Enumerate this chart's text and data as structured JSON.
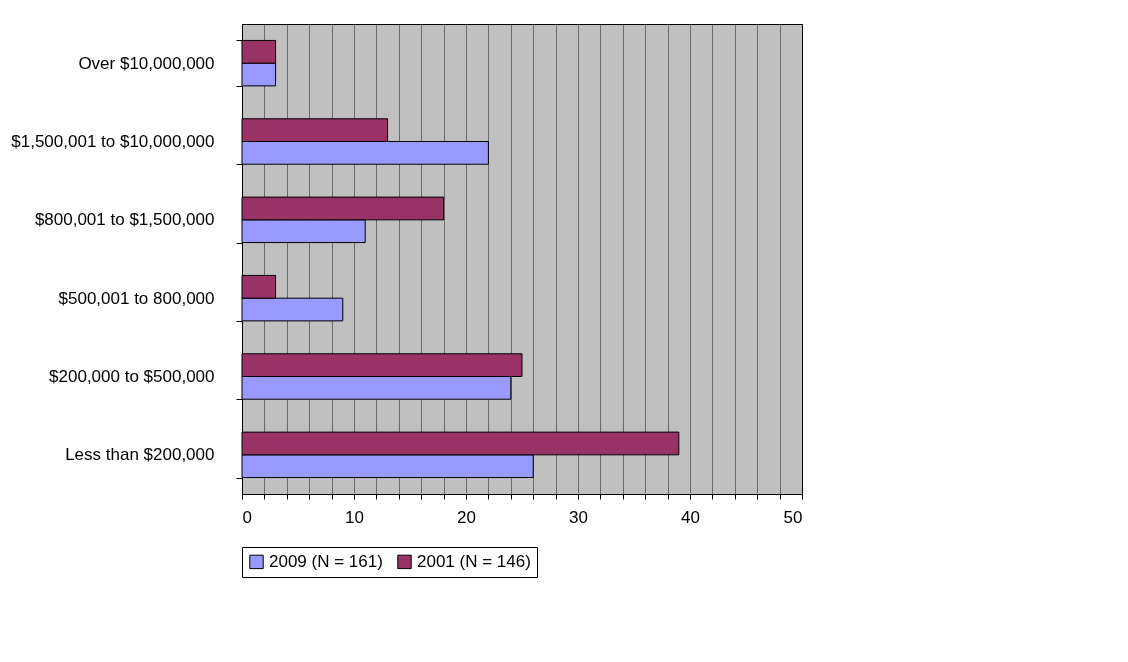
{
  "chart_data": {
    "type": "bar",
    "orientation": "horizontal",
    "categories": [
      "Over $10,000,000",
      "$1,500,001 to $10,000,000",
      "$800,001 to $1,500,000",
      "$500,001 to 800,000",
      "$200,000 to $500,000",
      "Less than $200,000"
    ],
    "series": [
      {
        "name": "2009 (N = 161)",
        "color": "#9999ff",
        "values": [
          3,
          22,
          11,
          9,
          24,
          26
        ]
      },
      {
        "name": "2001 (N = 146)",
        "color": "#993366",
        "values": [
          3,
          13,
          18,
          3,
          25,
          39
        ]
      }
    ],
    "xlim": [
      0,
      50
    ],
    "xticks": [
      0,
      {
        "value": 2,
        "label": null
      },
      {
        "value": 4,
        "label": null
      },
      {
        "value": 6,
        "label": null
      },
      {
        "value": 8,
        "label": null
      },
      10,
      {
        "value": 12,
        "label": null
      },
      {
        "value": 14,
        "label": null
      },
      {
        "value": 16,
        "label": null
      },
      {
        "value": 18,
        "label": null
      },
      20,
      {
        "value": 22,
        "label": null
      },
      {
        "value": 24,
        "label": null
      },
      {
        "value": 26,
        "label": null
      },
      {
        "value": 28,
        "label": null
      },
      30,
      {
        "value": 32,
        "label": null
      },
      {
        "value": 34,
        "label": null
      },
      {
        "value": 36,
        "label": null
      },
      {
        "value": 38,
        "label": null
      },
      40,
      {
        "value": 42,
        "label": null
      },
      {
        "value": 44,
        "label": null
      },
      {
        "value": 46,
        "label": null
      },
      {
        "value": 48,
        "label": null
      },
      50
    ],
    "grid": "x",
    "legend": "bottom"
  }
}
